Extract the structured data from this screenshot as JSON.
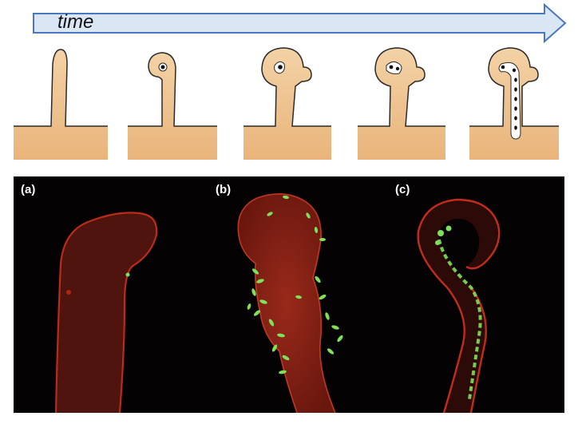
{
  "timeline": {
    "label": "time"
  },
  "stages": [
    {
      "name": "straight-root-hair"
    },
    {
      "name": "curled-root-hair"
    },
    {
      "name": "infection-focus"
    },
    {
      "name": "thread-initiation"
    },
    {
      "name": "infection-thread-elongation"
    }
  ],
  "micrographs": [
    {
      "label": "(a)"
    },
    {
      "label": "(b)"
    },
    {
      "label": "(c)"
    }
  ],
  "colors": {
    "arrow_fill": "#dbe6f4",
    "arrow_stroke": "#4a78c0",
    "tissue_fill": "#f2cfa0",
    "tissue_stroke": "#2a2a2a",
    "micrograph_bg": "#050203",
    "root_red": "#c8281c",
    "bacteria_green": "#7fe05a"
  }
}
